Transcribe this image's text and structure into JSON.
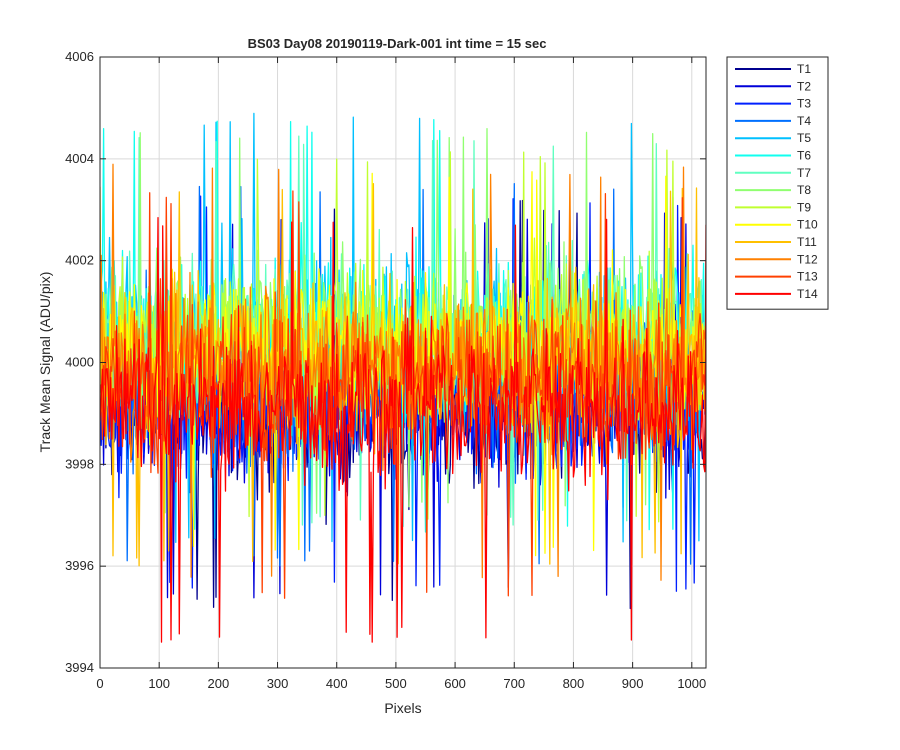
{
  "chart_data": {
    "type": "line",
    "title": "BS03 Day08 20190119-Dark-001 int time = 15 sec",
    "xlabel": "Pixels",
    "ylabel": "Track Mean Signal (ADU/pix)",
    "xlim": [
      0,
      1024
    ],
    "ylim": [
      3994,
      4006
    ],
    "xticks": [
      0,
      100,
      200,
      300,
      400,
      500,
      600,
      700,
      800,
      900,
      1000
    ],
    "yticks": [
      3994,
      3996,
      3998,
      4000,
      4002,
      4004,
      4006
    ],
    "grid": true,
    "legend_position": "outside-top-right",
    "noise_note": "dense per-pixel noise traces; values summarized by series mean and spread",
    "series": [
      {
        "name": "T1",
        "color": "#00008f",
        "mean": 3999.0,
        "spread": 1.0,
        "min": 3995.1,
        "max": 4003.2
      },
      {
        "name": "T2",
        "color": "#0000d9",
        "mean": 3999.1,
        "spread": 1.0,
        "min": 3995.3,
        "max": 4003.0
      },
      {
        "name": "T3",
        "color": "#0020ff",
        "mean": 3999.2,
        "spread": 1.0,
        "min": 3995.5,
        "max": 4003.3
      },
      {
        "name": "T4",
        "color": "#0070ff",
        "mean": 3999.6,
        "spread": 1.1,
        "min": 3996.0,
        "max": 4003.6
      },
      {
        "name": "T5",
        "color": "#00c0ff",
        "mean": 4000.4,
        "spread": 1.1,
        "min": 3996.3,
        "max": 4004.9
      },
      {
        "name": "T6",
        "color": "#10ffef",
        "mean": 4000.5,
        "spread": 1.1,
        "min": 3996.6,
        "max": 4004.8
      },
      {
        "name": "T7",
        "color": "#60ffc0",
        "mean": 4000.5,
        "spread": 1.05,
        "min": 3996.8,
        "max": 4004.5
      },
      {
        "name": "T8",
        "color": "#90ff70",
        "mean": 4000.5,
        "spread": 1.0,
        "min": 3997.0,
        "max": 4004.6
      },
      {
        "name": "T9",
        "color": "#c0ff30",
        "mean": 4000.4,
        "spread": 1.0,
        "min": 3996.8,
        "max": 4004.2
      },
      {
        "name": "T10",
        "color": "#ffff00",
        "mean": 4000.2,
        "spread": 1.0,
        "min": 3996.2,
        "max": 4003.8
      },
      {
        "name": "T11",
        "color": "#ffc000",
        "mean": 4000.0,
        "spread": 1.0,
        "min": 3996.0,
        "max": 4003.6
      },
      {
        "name": "T12",
        "color": "#ff8000",
        "mean": 3999.9,
        "spread": 1.0,
        "min": 3995.6,
        "max": 4003.9
      },
      {
        "name": "T13",
        "color": "#ff4000",
        "mean": 3999.6,
        "spread": 1.0,
        "min": 3995.3,
        "max": 4003.4
      },
      {
        "name": "T14",
        "color": "#ff0000",
        "mean": 3999.1,
        "spread": 1.0,
        "min": 3994.5,
        "max": 4002.9
      }
    ]
  },
  "colors": {
    "axis": "#262626",
    "grid": "#d9d9d9",
    "background": "#ffffff"
  }
}
